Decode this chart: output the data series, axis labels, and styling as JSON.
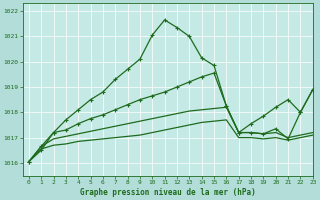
{
  "title": "Graphe pression niveau de la mer (hPa)",
  "background_color": "#b3ddd8",
  "plot_bg_color": "#c5eae5",
  "grid_color": "#a0c8c2",
  "line_color": "#1e6b1e",
  "xlim": [
    -0.5,
    23
  ],
  "ylim": [
    1015.5,
    1022.3
  ],
  "yticks": [
    1016,
    1017,
    1018,
    1019,
    1020,
    1021,
    1022
  ],
  "xticks": [
    0,
    1,
    2,
    3,
    4,
    5,
    6,
    7,
    8,
    9,
    10,
    11,
    12,
    13,
    14,
    15,
    16,
    17,
    18,
    19,
    20,
    21,
    22,
    23
  ],
  "series1_x": [
    0,
    1,
    2,
    3,
    4,
    5,
    6,
    7,
    8,
    9,
    10,
    11,
    12,
    13,
    14,
    15,
    16,
    17,
    18,
    19,
    20,
    21,
    22,
    23
  ],
  "series1_y": [
    1016.05,
    1016.5,
    1017.2,
    1017.7,
    1018.1,
    1018.5,
    1018.8,
    1019.3,
    1019.7,
    1020.1,
    1021.05,
    1021.65,
    1021.35,
    1021.0,
    1020.15,
    1019.85,
    1018.25,
    1017.2,
    1017.2,
    1017.15,
    1017.35,
    1016.95,
    1018.0,
    1018.9
  ],
  "series2_x": [
    0,
    1,
    2,
    3,
    4,
    5,
    6,
    7,
    8,
    9,
    10,
    11,
    12,
    13,
    14,
    15,
    16,
    17,
    18,
    19,
    20,
    21,
    22,
    23
  ],
  "series2_y": [
    1016.05,
    1016.65,
    1017.2,
    1017.3,
    1017.55,
    1017.75,
    1017.9,
    1018.1,
    1018.3,
    1018.5,
    1018.65,
    1018.8,
    1019.0,
    1019.2,
    1019.4,
    1019.55,
    1018.25,
    1017.2,
    1017.55,
    1017.85,
    1018.2,
    1018.5,
    1018.0,
    1018.9
  ],
  "series3_x": [
    0,
    1,
    2,
    3,
    4,
    5,
    6,
    7,
    8,
    9,
    10,
    11,
    12,
    13,
    14,
    15,
    16,
    17,
    18,
    19,
    20,
    21,
    22,
    23
  ],
  "series3_y": [
    1016.05,
    1016.65,
    1016.95,
    1017.05,
    1017.15,
    1017.25,
    1017.35,
    1017.45,
    1017.55,
    1017.65,
    1017.75,
    1017.85,
    1017.95,
    1018.05,
    1018.1,
    1018.15,
    1018.2,
    1017.2,
    1017.2,
    1017.15,
    1017.2,
    1017.0,
    1017.1,
    1017.2
  ],
  "series4_x": [
    0,
    1,
    2,
    3,
    4,
    5,
    6,
    7,
    8,
    9,
    10,
    11,
    12,
    13,
    14,
    15,
    16,
    17,
    18,
    19,
    20,
    21,
    22,
    23
  ],
  "series4_y": [
    1016.05,
    1016.55,
    1016.7,
    1016.75,
    1016.85,
    1016.9,
    1016.95,
    1017.0,
    1017.05,
    1017.1,
    1017.2,
    1017.3,
    1017.4,
    1017.5,
    1017.6,
    1017.65,
    1017.7,
    1017.0,
    1017.0,
    1016.95,
    1017.0,
    1016.9,
    1017.0,
    1017.1
  ]
}
